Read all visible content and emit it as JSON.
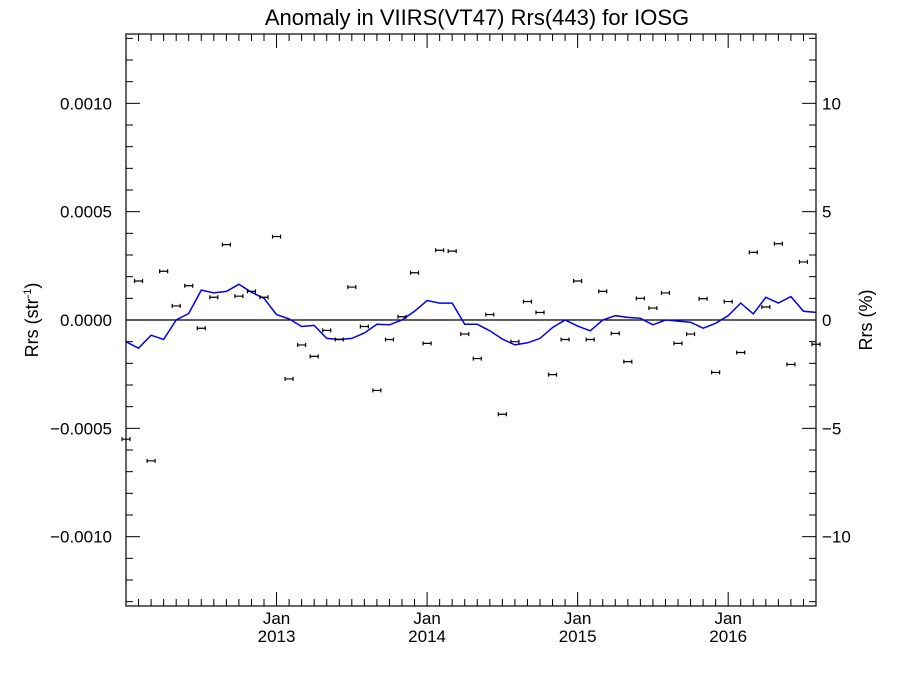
{
  "chart_data": {
    "type": "scatter",
    "title": "Anomaly in VIIRS(VT47) Rrs(443) for IOSG",
    "ylabel_left": "Rrs (str",
    "ylabel_left_sup": "-1",
    "ylabel_left_end": ")",
    "ylabel_right": "Rrs (%)",
    "xlim": [
      "2012-01",
      "2016-08"
    ],
    "ylim": [
      -0.00132,
      0.00132
    ],
    "ylim_right": [
      -13.2,
      13.2
    ],
    "x_major_ticks": [
      {
        "date": "2013-01",
        "top": "Jan",
        "bottom": "2013"
      },
      {
        "date": "2014-01",
        "top": "Jan",
        "bottom": "2014"
      },
      {
        "date": "2015-01",
        "top": "Jan",
        "bottom": "2015"
      },
      {
        "date": "2016-01",
        "top": "Jan",
        "bottom": "2016"
      }
    ],
    "y_ticks_left": [
      {
        "value": 0.001,
        "label": "0.0010"
      },
      {
        "value": 0.0005,
        "label": "0.0005"
      },
      {
        "value": 0,
        "label": "0.0000"
      },
      {
        "value": -0.0005,
        "label": "−0.0005"
      },
      {
        "value": -0.001,
        "label": "−0.0010"
      }
    ],
    "y_ticks_right": [
      {
        "value": 10,
        "label": "10"
      },
      {
        "value": 5,
        "label": "5"
      },
      {
        "value": 0,
        "label": "0"
      },
      {
        "value": -5,
        "label": "−5"
      },
      {
        "value": -10,
        "label": "−10"
      }
    ],
    "grid": false,
    "series": [
      {
        "kind": "points_with_error_bars",
        "color": "#000000",
        "points": [
          {
            "x": "2012-01",
            "y": -0.00055
          },
          {
            "x": "2012-02",
            "y": 0.00018
          },
          {
            "x": "2012-03",
            "y": -0.00065
          },
          {
            "x": "2012-04",
            "y": 0.000225
          },
          {
            "x": "2012-05",
            "y": 6.5e-05
          },
          {
            "x": "2012-06",
            "y": 0.000158
          },
          {
            "x": "2012-07",
            "y": -3.8e-05
          },
          {
            "x": "2012-08",
            "y": 0.000105
          },
          {
            "x": "2012-09",
            "y": 0.000348
          },
          {
            "x": "2012-10",
            "y": 0.00011
          },
          {
            "x": "2012-11",
            "y": 0.000132
          },
          {
            "x": "2012-12",
            "y": 0.000105
          },
          {
            "x": "2013-01",
            "y": 0.000385
          },
          {
            "x": "2013-02",
            "y": -0.000272
          },
          {
            "x": "2013-03",
            "y": -0.000115
          },
          {
            "x": "2013-04",
            "y": -0.000168
          },
          {
            "x": "2013-05",
            "y": -4.8e-05
          },
          {
            "x": "2013-06",
            "y": -9e-05
          },
          {
            "x": "2013-07",
            "y": 0.000152
          },
          {
            "x": "2013-08",
            "y": -3e-05
          },
          {
            "x": "2013-09",
            "y": -0.000325
          },
          {
            "x": "2013-10",
            "y": -9e-05
          },
          {
            "x": "2013-11",
            "y": 1.5e-05
          },
          {
            "x": "2013-12",
            "y": 0.000218
          },
          {
            "x": "2014-01",
            "y": -0.000108
          },
          {
            "x": "2014-02",
            "y": 0.000322
          },
          {
            "x": "2014-03",
            "y": 0.000318
          },
          {
            "x": "2014-04",
            "y": -6.5e-05
          },
          {
            "x": "2014-05",
            "y": -0.000178
          },
          {
            "x": "2014-06",
            "y": 2.5e-05
          },
          {
            "x": "2014-07",
            "y": -0.000435
          },
          {
            "x": "2014-08",
            "y": -0.0001
          },
          {
            "x": "2014-09",
            "y": 8.5e-05
          },
          {
            "x": "2014-10",
            "y": 3.5e-05
          },
          {
            "x": "2014-11",
            "y": -0.000252
          },
          {
            "x": "2014-12",
            "y": -9e-05
          },
          {
            "x": "2015-01",
            "y": 0.00018
          },
          {
            "x": "2015-02",
            "y": -9e-05
          },
          {
            "x": "2015-03",
            "y": 0.000132
          },
          {
            "x": "2015-04",
            "y": -6.2e-05
          },
          {
            "x": "2015-05",
            "y": -0.000192
          },
          {
            "x": "2015-06",
            "y": 0.0001
          },
          {
            "x": "2015-07",
            "y": 5.5e-05
          },
          {
            "x": "2015-08",
            "y": 0.000125
          },
          {
            "x": "2015-09",
            "y": -0.000108
          },
          {
            "x": "2015-10",
            "y": -6.5e-05
          },
          {
            "x": "2015-11",
            "y": 9.8e-05
          },
          {
            "x": "2015-12",
            "y": -0.000242
          },
          {
            "x": "2016-01",
            "y": 8.5e-05
          },
          {
            "x": "2016-02",
            "y": -0.00015
          },
          {
            "x": "2016-03",
            "y": 0.000312
          },
          {
            "x": "2016-04",
            "y": 6e-05
          },
          {
            "x": "2016-05",
            "y": 0.000352
          },
          {
            "x": "2016-06",
            "y": -0.000205
          },
          {
            "x": "2016-07",
            "y": 0.000268
          },
          {
            "x": "2016-08",
            "y": -0.000112
          }
        ]
      },
      {
        "kind": "line",
        "color": "#0000ee",
        "points": [
          {
            "x": "2012-01",
            "y": -0.0001
          },
          {
            "x": "2012-02",
            "y": -0.00013
          },
          {
            "x": "2012-03",
            "y": -7e-05
          },
          {
            "x": "2012-04",
            "y": -9e-05
          },
          {
            "x": "2012-05",
            "y": 0.0
          },
          {
            "x": "2012-06",
            "y": 3e-05
          },
          {
            "x": "2012-07",
            "y": 0.000138
          },
          {
            "x": "2012-08",
            "y": 0.000125
          },
          {
            "x": "2012-09",
            "y": 0.000132
          },
          {
            "x": "2012-10",
            "y": 0.000165
          },
          {
            "x": "2012-11",
            "y": 0.000128
          },
          {
            "x": "2012-12",
            "y": 0.0001
          },
          {
            "x": "2013-01",
            "y": 2.5e-05
          },
          {
            "x": "2013-02",
            "y": 5e-06
          },
          {
            "x": "2013-03",
            "y": -3e-05
          },
          {
            "x": "2013-04",
            "y": -2.5e-05
          },
          {
            "x": "2013-05",
            "y": -8.5e-05
          },
          {
            "x": "2013-06",
            "y": -9e-05
          },
          {
            "x": "2013-07",
            "y": -8.5e-05
          },
          {
            "x": "2013-08",
            "y": -6e-05
          },
          {
            "x": "2013-09",
            "y": -2e-05
          },
          {
            "x": "2013-10",
            "y": -2.2e-05
          },
          {
            "x": "2013-11",
            "y": 0.0
          },
          {
            "x": "2013-12",
            "y": 4e-05
          },
          {
            "x": "2014-01",
            "y": 9e-05
          },
          {
            "x": "2014-02",
            "y": 7.8e-05
          },
          {
            "x": "2014-03",
            "y": 7.8e-05
          },
          {
            "x": "2014-04",
            "y": -2e-05
          },
          {
            "x": "2014-05",
            "y": -2e-05
          },
          {
            "x": "2014-06",
            "y": -5e-05
          },
          {
            "x": "2014-07",
            "y": -8.8e-05
          },
          {
            "x": "2014-08",
            "y": -0.000115
          },
          {
            "x": "2014-09",
            "y": -0.000105
          },
          {
            "x": "2014-10",
            "y": -8.5e-05
          },
          {
            "x": "2014-11",
            "y": -3.5e-05
          },
          {
            "x": "2014-12",
            "y": 0.0
          },
          {
            "x": "2015-01",
            "y": -2.8e-05
          },
          {
            "x": "2015-02",
            "y": -5e-05
          },
          {
            "x": "2015-03",
            "y": 0.0
          },
          {
            "x": "2015-04",
            "y": 2e-05
          },
          {
            "x": "2015-05",
            "y": 1.2e-05
          },
          {
            "x": "2015-06",
            "y": 8e-06
          },
          {
            "x": "2015-07",
            "y": -2.2e-05
          },
          {
            "x": "2015-08",
            "y": 0.0
          },
          {
            "x": "2015-09",
            "y": -5e-06
          },
          {
            "x": "2015-10",
            "y": -1e-05
          },
          {
            "x": "2015-11",
            "y": -3.8e-05
          },
          {
            "x": "2015-12",
            "y": -1.5e-05
          },
          {
            "x": "2016-01",
            "y": 2e-05
          },
          {
            "x": "2016-02",
            "y": 7.8e-05
          },
          {
            "x": "2016-03",
            "y": 2.8e-05
          },
          {
            "x": "2016-04",
            "y": 0.000105
          },
          {
            "x": "2016-05",
            "y": 7.8e-05
          },
          {
            "x": "2016-06",
            "y": 0.000108
          },
          {
            "x": "2016-07",
            "y": 4e-05
          },
          {
            "x": "2016-08",
            "y": 3.5e-05
          }
        ]
      }
    ]
  }
}
